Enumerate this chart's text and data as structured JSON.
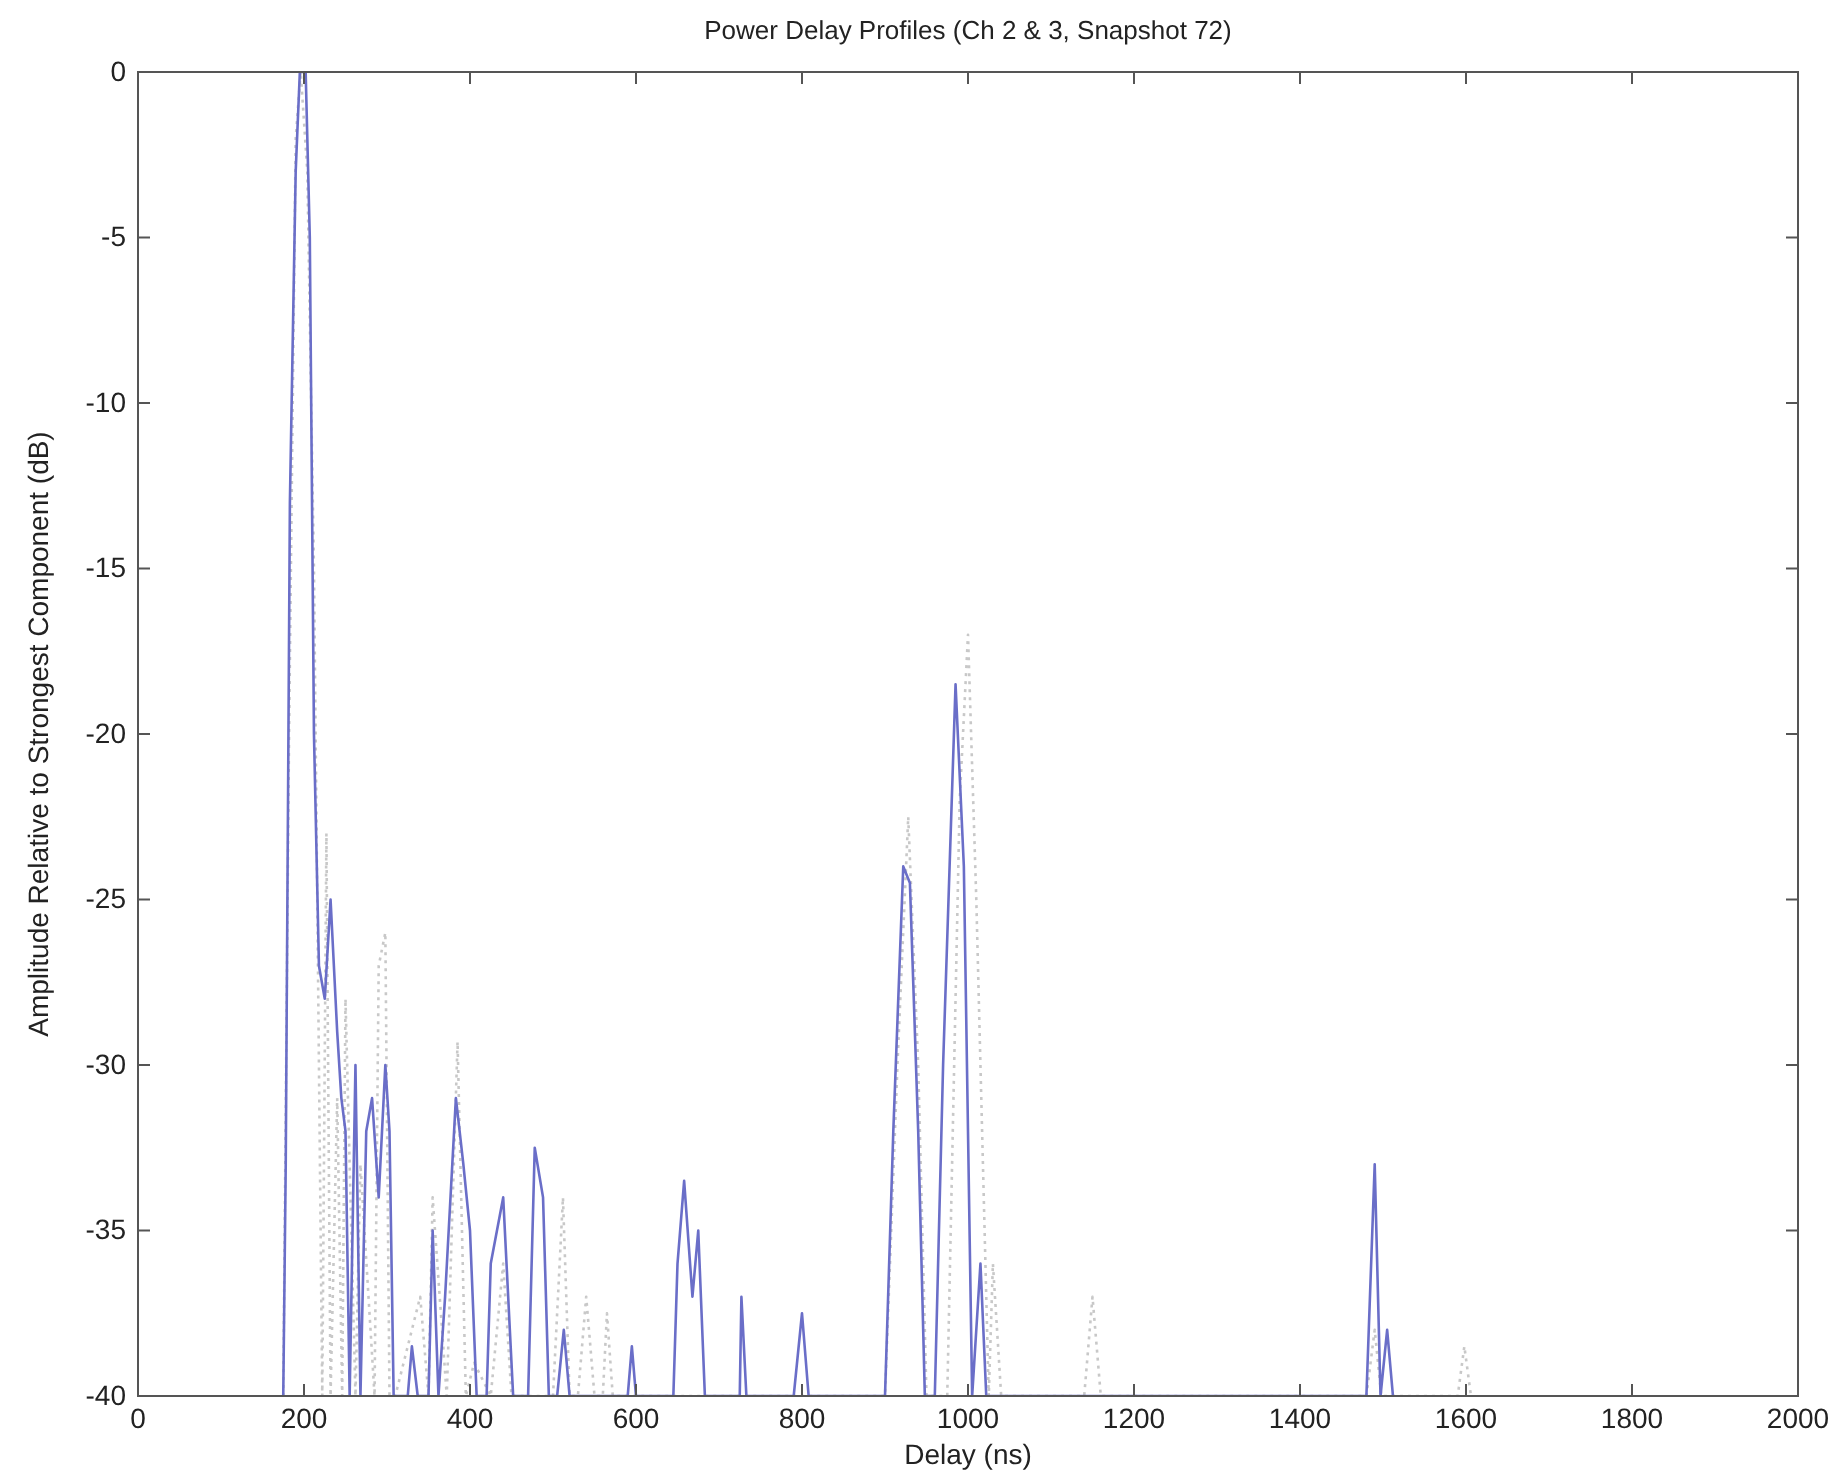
{
  "chart_data": {
    "type": "line",
    "title": "Power Delay Profiles  (Ch 2 & 3, Snapshot 72)",
    "xlabel": "Delay (ns)",
    "ylabel": "Amplitude Relative to Strongest Component (dB)",
    "xlim": [
      0,
      2000
    ],
    "xticks": [
      0,
      200,
      400,
      600,
      800,
      1000,
      1200,
      1400,
      1600,
      1800,
      2000
    ],
    "ylim": [
      -40,
      0
    ],
    "yticks": [
      -40,
      -35,
      -30,
      -25,
      -20,
      -15,
      -10,
      -5,
      0
    ],
    "grid": false,
    "series": [
      {
        "color": "#c8c8c8",
        "line_style": "dotted",
        "x": [
          175,
          182,
          190,
          196,
          204,
          212,
          222,
          227,
          232,
          240,
          246,
          250,
          262,
          268,
          285,
          290,
          298,
          303,
          310,
          340,
          350,
          355,
          372,
          385,
          395,
          405,
          425,
          440,
          450,
          500,
          512,
          520,
          530,
          540,
          550,
          560,
          565,
          572,
          580,
          900,
          915,
          928,
          940,
          950,
          975,
          990,
          1000,
          1010,
          1025,
          1030,
          1040,
          1140,
          1150,
          1160,
          1480,
          1490,
          1498,
          1590,
          1598,
          1606
        ],
        "values": [
          -40,
          -20,
          -2,
          0,
          -3,
          -15,
          -40,
          -23,
          -40,
          -31,
          -40,
          -28,
          -40,
          -33,
          -40,
          -27,
          -26,
          -40,
          -40,
          -37,
          -40,
          -34,
          -40,
          -29.3,
          -40,
          -39,
          -40,
          -36,
          -40,
          -40,
          -34,
          -40,
          -40,
          -37,
          -40,
          -40,
          -37.5,
          -40,
          -40,
          -40,
          -30,
          -22.5,
          -30,
          -40,
          -40,
          -22,
          -17,
          -25,
          -40,
          -36,
          -40,
          -40,
          -37,
          -40,
          -40,
          -38,
          -40,
          -40,
          -38.5,
          -40
        ]
      },
      {
        "color": "#6a6ec8",
        "line_style": "solid",
        "x": [
          175,
          178,
          183,
          190,
          195,
          202,
          207,
          212,
          218,
          225,
          232,
          240,
          245,
          250,
          255,
          262,
          268,
          275,
          282,
          290,
          298,
          303,
          308,
          325,
          330,
          337,
          350,
          355,
          362,
          370,
          383,
          392,
          400,
          408,
          420,
          425,
          440,
          452,
          470,
          478,
          488,
          495,
          505,
          513,
          520,
          590,
          595,
          600,
          645,
          650,
          658,
          668,
          675,
          683,
          725,
          727,
          733,
          790,
          800,
          808,
          900,
          910,
          922,
          930,
          940,
          948,
          960,
          970,
          985,
          995,
          1005,
          1015,
          1022,
          1480,
          1490,
          1497,
          1505,
          1512
        ],
        "values": [
          -40,
          -33,
          -13,
          -3,
          0,
          0,
          -5,
          -20,
          -27,
          -28,
          -25,
          -29,
          -31,
          -32,
          -40,
          -30,
          -40,
          -32,
          -31,
          -34,
          -30,
          -32,
          -40,
          -40,
          -38.5,
          -40,
          -40,
          -35,
          -40,
          -37,
          -31,
          -33,
          -35,
          -40,
          -40,
          -36,
          -34,
          -40,
          -40,
          -32.5,
          -34,
          -40,
          -40,
          -38,
          -40,
          -40,
          -38.5,
          -40,
          -40,
          -36,
          -33.5,
          -37,
          -35,
          -40,
          -40,
          -37,
          -40,
          -40,
          -37.5,
          -40,
          -40,
          -32,
          -24,
          -24.5,
          -32,
          -40,
          -40,
          -30,
          -18.5,
          -24,
          -40,
          -36,
          -40,
          -40,
          -33,
          -40,
          -38,
          -40
        ]
      }
    ]
  }
}
